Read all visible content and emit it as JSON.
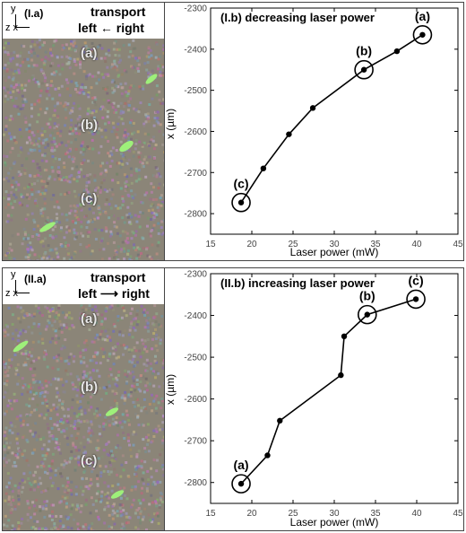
{
  "panels": [
    {
      "image_label": "(I.a)",
      "axes_y": "y",
      "axes_zx": "z x",
      "transport_word": "transport",
      "transport_left": "left",
      "transport_arrow": "←",
      "transport_right": "right",
      "image_markers": [
        "(a)",
        "(b)",
        "(c)"
      ]
    },
    {
      "image_label": "(II.a)",
      "axes_y": "y",
      "axes_zx": "z x",
      "transport_word": "transport",
      "transport_left": "left",
      "transport_arrow": "⟶",
      "transport_right": "right",
      "image_markers": [
        "(a)",
        "(b)",
        "(c)"
      ]
    }
  ],
  "chart_data": [
    {
      "type": "line",
      "title": "(I.b) decreasing laser power",
      "xlabel": "Laser power (mW)",
      "ylabel": "x (µm)",
      "xlim": [
        15,
        45
      ],
      "ylim": [
        -2850,
        -2300
      ],
      "xticks": [
        15,
        20,
        25,
        30,
        35,
        40,
        45
      ],
      "yticks": [
        -2800,
        -2700,
        -2600,
        -2500,
        -2400,
        -2300
      ],
      "x": [
        18.7,
        21.4,
        24.5,
        27.4,
        33.6,
        37.6,
        40.7
      ],
      "y": [
        -2773,
        -2690,
        -2607,
        -2543,
        -2450,
        -2405,
        -2365
      ],
      "circled": [
        {
          "label": "(a)",
          "x": 40.7,
          "y": -2365
        },
        {
          "label": "(b)",
          "x": 33.6,
          "y": -2450
        },
        {
          "label": "(c)",
          "x": 18.7,
          "y": -2773
        }
      ],
      "marker_color": "#000000"
    },
    {
      "type": "line",
      "title": "(II.b) increasing laser power",
      "xlabel": "Laser power (mW)",
      "ylabel": "x (µm)",
      "xlim": [
        15,
        45
      ],
      "ylim": [
        -2850,
        -2300
      ],
      "xticks": [
        15,
        20,
        25,
        30,
        35,
        40,
        45
      ],
      "yticks": [
        -2800,
        -2700,
        -2600,
        -2500,
        -2400,
        -2300
      ],
      "x": [
        18.7,
        21.9,
        23.4,
        30.8,
        31.2,
        34.0,
        39.9
      ],
      "y": [
        -2803,
        -2735,
        -2652,
        -2543,
        -2450,
        -2398,
        -2361
      ],
      "circled": [
        {
          "label": "(a)",
          "x": 18.7,
          "y": -2803
        },
        {
          "label": "(b)",
          "x": 34.0,
          "y": -2398
        },
        {
          "label": "(c)",
          "x": 39.9,
          "y": -2361
        }
      ],
      "marker_color": "#000000"
    }
  ]
}
